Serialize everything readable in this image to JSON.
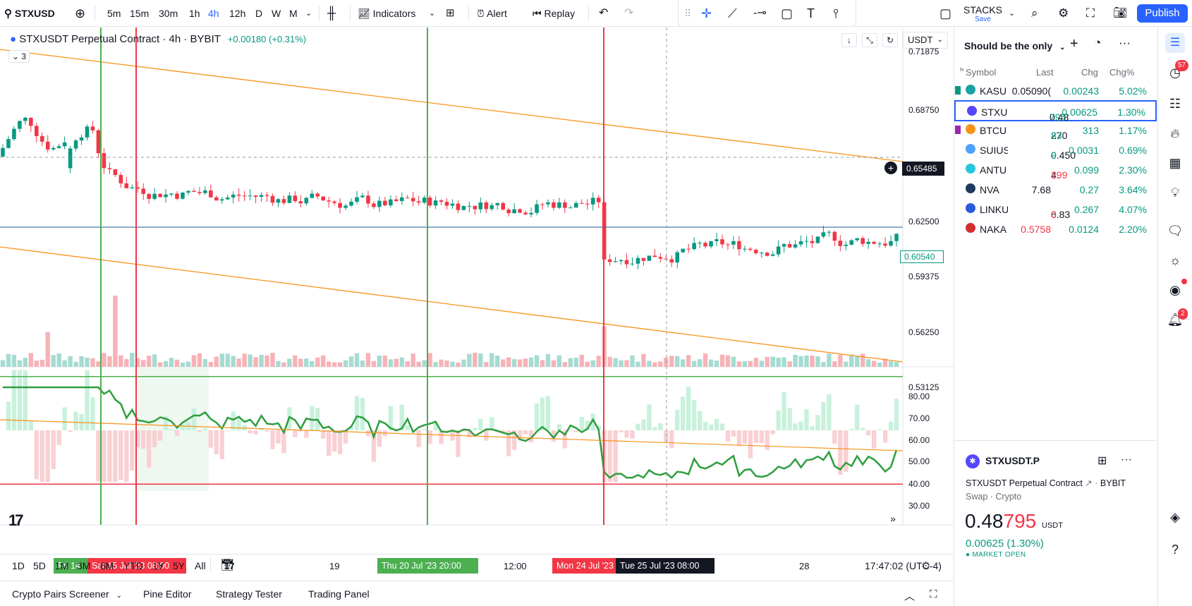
{
  "topbar": {
    "symbol": "STXUSD",
    "intervals": [
      "5m",
      "15m",
      "30m",
      "1h",
      "4h",
      "12h",
      "D",
      "W",
      "M"
    ],
    "active_interval": "4h",
    "indicators_label": "Indicators",
    "alert_label": "Alert",
    "replay_label": "Replay",
    "layout_name": "STACKS",
    "layout_sub": "Save",
    "publish_label": "Publish"
  },
  "chart": {
    "title": "STXUSDT Perpetual Contract · 4h · BYBIT",
    "change": "+0.00180 (+0.31%)",
    "collapsed_count": "3",
    "currency": "USDT",
    "price_labels": [
      "0.71875",
      "0.68750",
      "0.65485",
      "0.62500",
      "0.60540",
      "0.59375",
      "0.56250",
      "0.53125"
    ],
    "crosshair_price": "0.65485",
    "last_price": "0.60540",
    "osc_labels": [
      "80.00",
      "70.00",
      "60.00",
      "50.00",
      "40.00",
      "30.00"
    ],
    "time_labels": [
      "17",
      "19",
      "12:00",
      "28"
    ],
    "time_boxes": [
      "Fri 14",
      "Sat 15 Jul '23   08:00",
      "Thu 20 Jul '23   20:00",
      "Mon 24 Jul '23",
      "Tue 25 Jul '23   08:00"
    ],
    "clock": "17:47:02 (UTC-4)",
    "logo": "17",
    "colors": {
      "up": "#089981",
      "down": "#f23645",
      "trend": "#f7931a",
      "rsi": "#2e9e3e"
    }
  },
  "ranges": [
    "1D",
    "5D",
    "1M",
    "3M",
    "6M",
    "YTD",
    "1Y",
    "5Y",
    "All"
  ],
  "bottom_tabs": [
    "Crypto Pairs Screener",
    "Pine Editor",
    "Strategy Tester",
    "Trading Panel"
  ],
  "watchlist": {
    "name": "Should be the only",
    "columns": [
      "Symbol",
      "Last",
      "Chg",
      "Chg%"
    ],
    "rows": [
      {
        "symbol": "KASU",
        "last": "0.05090(",
        "chg": "0.00243",
        "pct": "5.02%",
        "dir": "up",
        "flag": "#089981"
      },
      {
        "symbol": "STXU",
        "last_a": "0.48",
        "last_b": "795",
        "chg": "0.00625",
        "pct": "1.30%",
        "dir": "up",
        "selected": true
      },
      {
        "symbol": "BTCU",
        "last_a": "270",
        "last_b": "83",
        "chg": "313",
        "pct": "1.17%",
        "dir": "up",
        "flag": "#9c27b0"
      },
      {
        "symbol": "SUIUS",
        "last_a": "0.450",
        "last_b": "9",
        "chg": "0.0031",
        "pct": "0.69%",
        "dir": "up"
      },
      {
        "symbol": "ANTU",
        "last_a": "4.",
        "last_b": "399",
        "chg": "0.099",
        "pct": "2.30%",
        "dir": "down"
      },
      {
        "symbol": "NVA",
        "last": "7.68",
        "chg": "0.27",
        "pct": "3.64%",
        "dir": "up"
      },
      {
        "symbol": "LINKU",
        "last_a": "6.83",
        "last_b": "0",
        "chg": "0.267",
        "pct": "4.07%",
        "dir": "down"
      },
      {
        "symbol": "NAKA",
        "last": "0.5758",
        "chg": "0.0124",
        "pct": "2.20%",
        "dir": "down"
      }
    ]
  },
  "details": {
    "symbol": "STXUSDT.P",
    "description": "STXUSDT Perpetual Contract",
    "exchange": "BYBIT",
    "type": "Swap · Crypto",
    "price_a": "0.48",
    "price_b": "795",
    "currency": "USDT",
    "change": "0.00625 (1.30%)",
    "status": "MARKET OPEN"
  },
  "sidebar": {
    "badge_ideas": "57",
    "badge_alerts": "2"
  }
}
